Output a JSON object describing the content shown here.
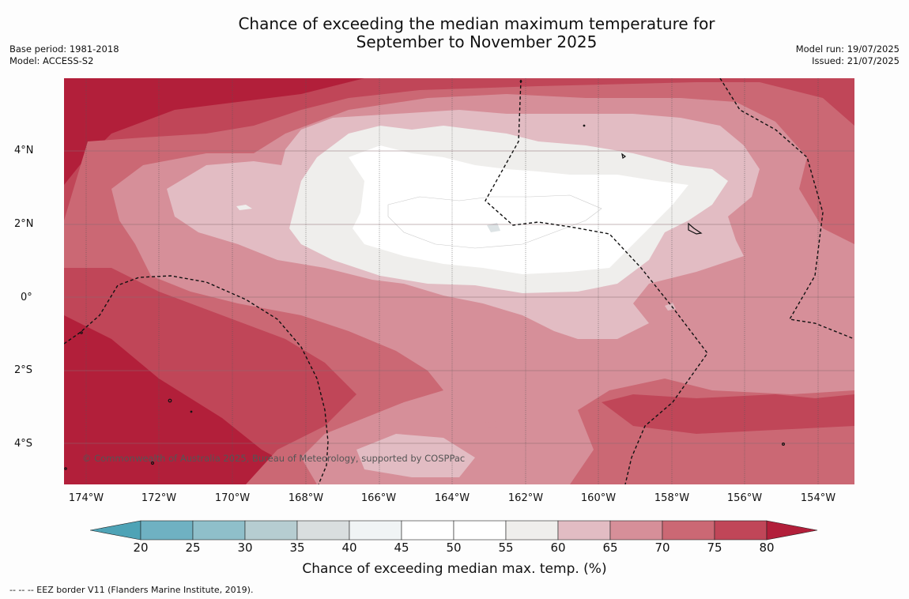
{
  "title_line1": "Chance of exceeding the median maximum temperature for",
  "title_line2": "September to November 2025",
  "base_period": "Base period: 1981-2018",
  "model": "Model: ACCESS-S2",
  "model_run": "Model run: 19/07/2025",
  "issued": "Issued: 21/07/2025",
  "copyright": "© Commonwealth of Australia 2025, Bureau of Meteorology, supported by COSPPac",
  "x_ticks": [
    "174°W",
    "172°W",
    "170°W",
    "168°W",
    "166°W",
    "164°W",
    "162°W",
    "160°W",
    "158°W",
    "156°W",
    "154°W"
  ],
  "y_ticks": [
    "4°N",
    "2°N",
    "0°",
    "2°S",
    "4°S"
  ],
  "colorbar": {
    "ticks": [
      "20",
      "25",
      "30",
      "35",
      "40",
      "45",
      "50",
      "55",
      "60",
      "65",
      "70",
      "75",
      "80"
    ],
    "label": "Chance of exceeding median max. temp. (%)",
    "colors": [
      "#4ea3b6",
      "#6fb1c2",
      "#8fbfca",
      "#b6cdd1",
      "#d9dedf",
      "#f0f4f5",
      "#ffffff",
      "#ffffff",
      "#efeeec",
      "#e2bcc3",
      "#d68f99",
      "#cb6874",
      "#c04658",
      "#b21f3a"
    ]
  },
  "footnote": "--  --  -- EEZ border V11 (Flanders Marine Institute, 2019).",
  "legend_colors": {
    "p55_60": "#efeeec",
    "p60_65": "#e2bcc3",
    "p65_70": "#d68f99",
    "p70_75": "#cb6874",
    "p75_80": "#c04658",
    "p80plus": "#b21f3a",
    "p50_55": "#ffffff"
  }
}
